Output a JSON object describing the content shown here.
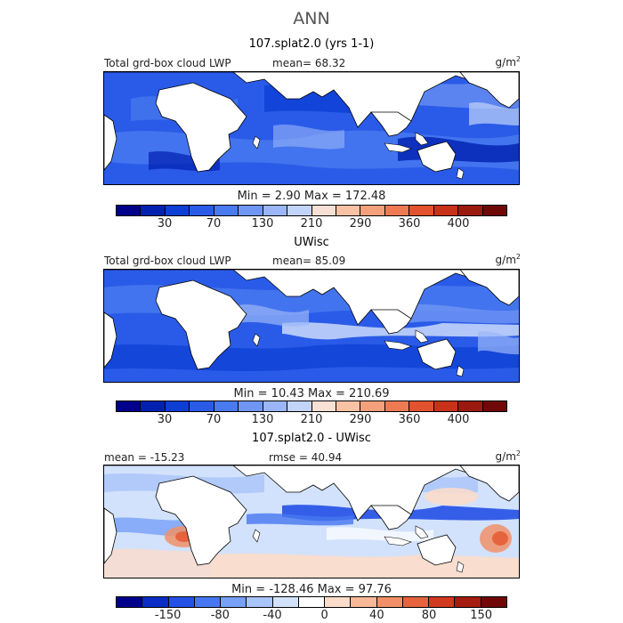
{
  "figure": {
    "title": "ANN"
  },
  "colors": {
    "abs": [
      "#00008b",
      "#0020b0",
      "#0d3fd4",
      "#2a5be8",
      "#4a7af0",
      "#7096f4",
      "#9ab6f8",
      "#c2d4fa",
      "#f7e0d4",
      "#f9c2a4",
      "#f5a07c",
      "#ee7a54",
      "#e2522e",
      "#c8321a",
      "#9a1a10",
      "#700808"
    ],
    "diff": [
      "#00008b",
      "#0a2bc4",
      "#2450e6",
      "#4777f0",
      "#77a0f6",
      "#a9c4f9",
      "#d2e2fc",
      "#ffffff",
      "#fbdccb",
      "#f7b898",
      "#f19068",
      "#e5643e",
      "#cf3a20",
      "#a51c10",
      "#700808"
    ]
  },
  "panels": [
    {
      "id": "model",
      "title": "107.splat2.0 (yrs 1-1)",
      "left_label": "Total grd-box cloud LWP",
      "center_label": "mean=  68.32",
      "units": "g/m",
      "units_sup": "2",
      "min_max": "Min =    2.90  Max = 172.48",
      "colorbar_ticks": [
        "30",
        "70",
        "130",
        "210",
        "290",
        "360",
        "400"
      ]
    },
    {
      "id": "obs",
      "title": "UWisc",
      "left_label": "Total grd-box cloud LWP",
      "center_label": "mean=  85.09",
      "units": "g/m",
      "units_sup": "2",
      "min_max": "Min =  10.43  Max = 210.69",
      "colorbar_ticks": [
        "30",
        "70",
        "130",
        "210",
        "290",
        "360",
        "400"
      ]
    },
    {
      "id": "diff",
      "title": "107.splat2.0 - UWisc",
      "left_label": "mean = -15.23",
      "center_label": "rmse =  40.94",
      "units": "g/m",
      "units_sup": "2",
      "min_max": "Min = -128.46  Max =  97.76",
      "colorbar_ticks": [
        "-150",
        "-80",
        "-40",
        "0",
        "40",
        "80",
        "150"
      ]
    }
  ]
}
